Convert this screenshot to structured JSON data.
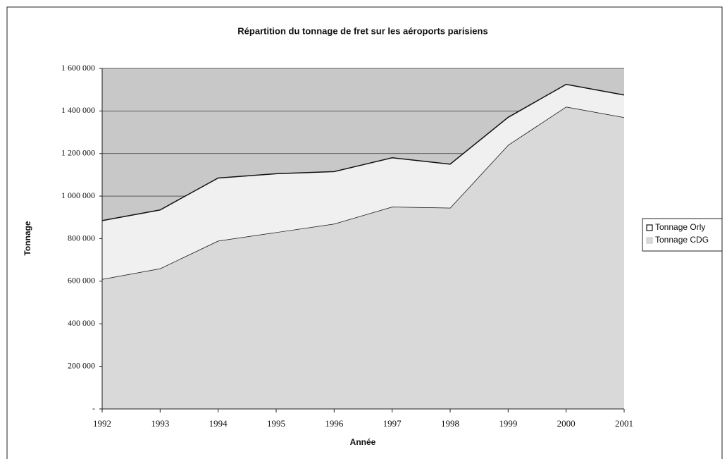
{
  "chart_data": {
    "type": "stacked_area",
    "title": "Répartition du tonnage de fret sur les aéroports parisiens",
    "xlabel": "Année",
    "ylabel": "Tonnage",
    "categories": [
      "1992",
      "1993",
      "1994",
      "1995",
      "1996",
      "1997",
      "1998",
      "1999",
      "2000",
      "2001"
    ],
    "series": [
      {
        "name": "Tonnage CDG",
        "color": "#d9d9d9",
        "values": [
          610000,
          660000,
          790000,
          830000,
          870000,
          950000,
          945000,
          1240000,
          1420000,
          1370000
        ]
      },
      {
        "name": "Tonnage Orly",
        "color": "#f0f0f0",
        "values": [
          275000,
          275000,
          295000,
          275000,
          245000,
          230000,
          205000,
          130000,
          105000,
          105000
        ]
      }
    ],
    "ylim": [
      0,
      1600000
    ],
    "yticks": [
      {
        "value": 0,
        "label": "-"
      },
      {
        "value": 200000,
        "label": "200 000"
      },
      {
        "value": 400000,
        "label": "400 000"
      },
      {
        "value": 600000,
        "label": "600 000"
      },
      {
        "value": 800000,
        "label": "800 000"
      },
      {
        "value": 1000000,
        "label": "1 000 000"
      },
      {
        "value": 1200000,
        "label": "1 200 000"
      },
      {
        "value": 1400000,
        "label": "1 400 000"
      },
      {
        "value": 1600000,
        "label": "1 600 000"
      }
    ],
    "grid": true,
    "legend": "right"
  }
}
